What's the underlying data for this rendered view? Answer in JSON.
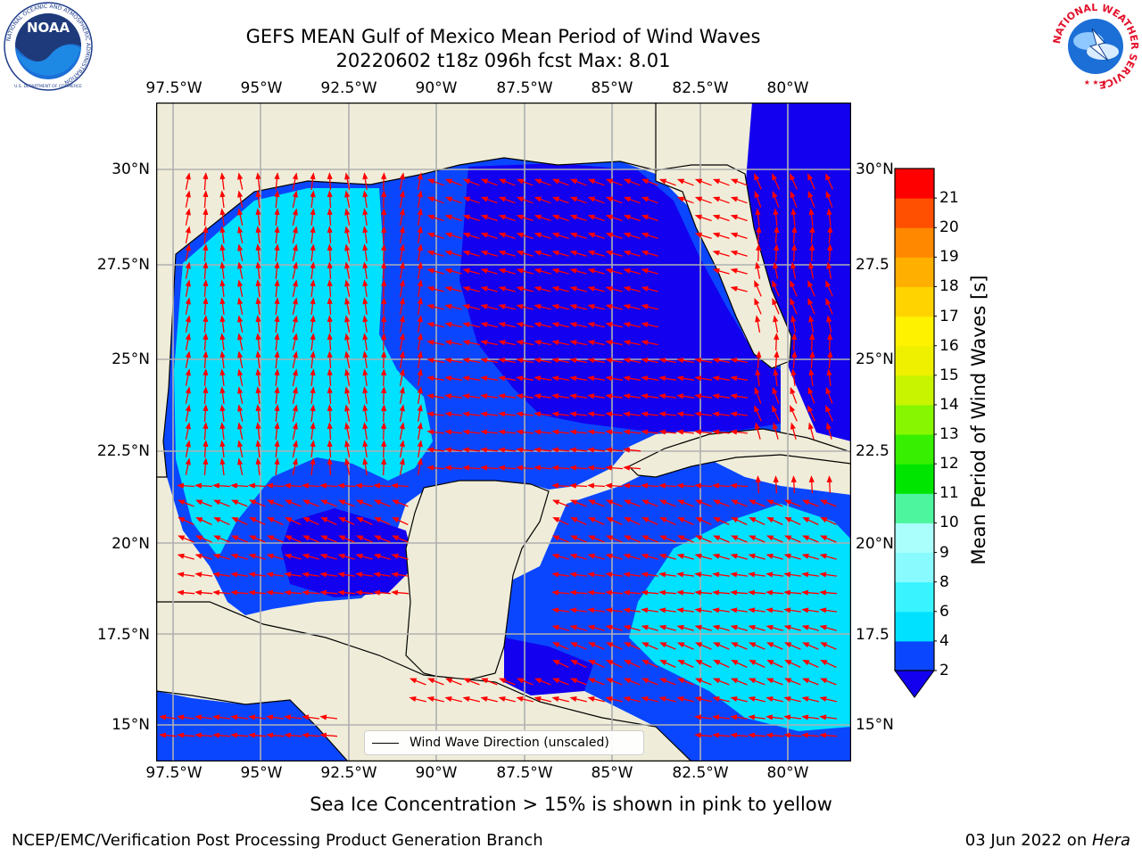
{
  "header": {
    "title_line1": "GEFS MEAN Gulf of Mexico Mean Period of Wind Waves",
    "title_line2": "20220602 t18z 096h fcst   Max: 8.01"
  },
  "logos": {
    "left": {
      "text": "NOAA",
      "ring_text": "NATIONAL OCEANIC AND ATMOSPHERIC ADMINISTRATION",
      "bottom_text": "U.S. DEPARTMENT OF COMMERCE"
    },
    "right": {
      "ring_text": "NATIONAL WEATHER SERVICE"
    }
  },
  "map": {
    "lon_ticks": [
      "97.5°W",
      "95°W",
      "92.5°W",
      "90°W",
      "87.5°W",
      "85°W",
      "82.5°W",
      "80°W"
    ],
    "lat_ticks_left": [
      "30°N",
      "27.5°N",
      "25°N",
      "22.5°N",
      "20°N",
      "17.5°N",
      "15°N"
    ],
    "lat_ticks_right": [
      "30°N",
      "27.5",
      "25°N",
      "22.5",
      "20°N",
      "17.5",
      "15°N"
    ],
    "legend_label": "Wind Wave Direction (unscaled)",
    "colors": {
      "land": "#efedd9",
      "arrow": "#ff0000",
      "grid": "#b0b0b0"
    }
  },
  "colorbar": {
    "label": "Mean Period of Wind Waves [s]",
    "ticks": [
      "2",
      "4",
      "6",
      "8",
      "9",
      "10",
      "11",
      "12",
      "13",
      "14",
      "15",
      "16",
      "17",
      "18",
      "19",
      "20",
      "21"
    ],
    "colors": [
      "#0b46ff",
      "#00e1ff",
      "#39f3ff",
      "#89fbff",
      "#aafffc",
      "#4df59e",
      "#00e500",
      "#37ef00",
      "#86f700",
      "#c8f400",
      "#eef000",
      "#fff200",
      "#ffd300",
      "#ffaf00",
      "#ff8800",
      "#ff4f00",
      "#ff0000"
    ],
    "extend_color": "#1200ee"
  },
  "caption": "Sea Ice Concentration > 15% is shown in pink to yellow",
  "footer": {
    "left": "NCEP/EMC/Verification Post Processing Product Generation Branch",
    "right_prefix": "03 Jun 2022 on ",
    "right_host": "Hera"
  }
}
